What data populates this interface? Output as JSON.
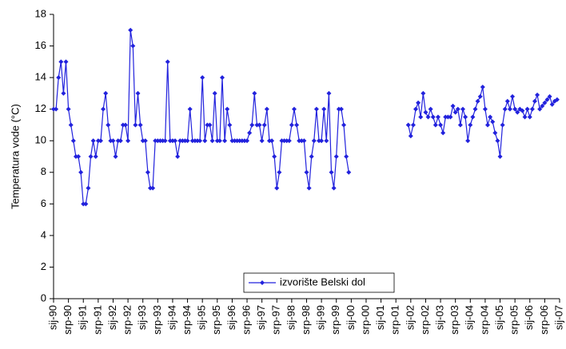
{
  "chart_data": {
    "type": "line",
    "y_label": "Temperatura vode (°C)",
    "x": [
      "1990-01",
      "1990-02",
      "1990-03",
      "1990-04",
      "1990-05",
      "1990-06",
      "1990-07",
      "1990-08",
      "1990-09",
      "1990-10",
      "1990-11",
      "1990-12",
      "1991-01",
      "1991-02",
      "1991-03",
      "1991-04",
      "1991-05",
      "1991-06",
      "1991-07",
      "1991-08",
      "1991-09",
      "1991-10",
      "1991-11",
      "1991-12",
      "1992-01",
      "1992-02",
      "1992-03",
      "1992-04",
      "1992-05",
      "1992-06",
      "1992-07",
      "1992-08",
      "1992-09",
      "1992-10",
      "1992-11",
      "1992-12",
      "1993-01",
      "1993-02",
      "1993-03",
      "1993-04",
      "1993-05",
      "1993-06",
      "1993-07",
      "1993-08",
      "1993-09",
      "1993-10",
      "1993-11",
      "1993-12",
      "1994-01",
      "1994-02",
      "1994-03",
      "1994-04",
      "1994-05",
      "1994-06",
      "1994-07",
      "1994-08",
      "1994-09",
      "1994-10",
      "1994-11",
      "1994-12",
      "1995-01",
      "1995-02",
      "1995-03",
      "1995-04",
      "1995-05",
      "1995-06",
      "1995-07",
      "1995-08",
      "1995-09",
      "1995-10",
      "1995-11",
      "1995-12",
      "1996-01",
      "1996-02",
      "1996-03",
      "1996-04",
      "1996-05",
      "1996-06",
      "1996-07",
      "1996-08",
      "1996-09",
      "1996-10",
      "1996-11",
      "1996-12",
      "1997-01",
      "1997-02",
      "1997-03",
      "1997-04",
      "1997-05",
      "1997-06",
      "1997-07",
      "1997-08",
      "1997-09",
      "1997-10",
      "1997-11",
      "1997-12",
      "1998-01",
      "1998-02",
      "1998-03",
      "1998-04",
      "1998-05",
      "1998-06",
      "1998-07",
      "1998-08",
      "1998-09",
      "1998-10",
      "1998-11",
      "1998-12",
      "1999-01",
      "1999-02",
      "1999-03",
      "1999-04",
      "1999-05",
      "1999-06",
      "1999-07",
      "1999-08",
      "1999-09",
      "1999-10",
      "1999-11",
      "1999-12",
      "2000-06",
      "2001-12",
      "2002-01",
      "2002-02",
      "2002-03",
      "2002-04",
      "2002-05",
      "2002-06",
      "2002-07",
      "2002-08",
      "2002-09",
      "2002-10",
      "2002-11",
      "2002-12",
      "2003-01",
      "2003-02",
      "2003-03",
      "2003-04",
      "2003-05",
      "2003-06",
      "2003-07",
      "2003-08",
      "2003-09",
      "2003-10",
      "2003-11",
      "2003-12",
      "2004-01",
      "2004-02",
      "2004-03",
      "2004-04",
      "2004-05",
      "2004-06",
      "2004-07",
      "2004-08",
      "2004-09",
      "2004-10",
      "2004-11",
      "2004-12",
      "2005-01",
      "2005-02",
      "2005-03",
      "2005-04",
      "2005-05",
      "2005-06",
      "2005-07",
      "2005-08",
      "2005-09",
      "2005-10",
      "2005-11",
      "2005-12",
      "2006-01",
      "2006-02",
      "2006-03",
      "2006-04",
      "2006-05",
      "2006-06",
      "2006-07",
      "2006-08",
      "2006-09",
      "2006-10",
      "2006-11",
      "2006-12"
    ],
    "series": [
      {
        "name": "izvorište Belski dol",
        "color": "#2222dd",
        "values": [
          12,
          12,
          14,
          15,
          13,
          15,
          12,
          11,
          10,
          9,
          9,
          8,
          6,
          6,
          7,
          9,
          10,
          9,
          10,
          10,
          12,
          13,
          11,
          10,
          10,
          9,
          10,
          10,
          11,
          11,
          10,
          17,
          16,
          11,
          13,
          11,
          10,
          10,
          8,
          7,
          7,
          10,
          10,
          10,
          10,
          10,
          15,
          10,
          10,
          10,
          9,
          10,
          10,
          10,
          10,
          12,
          10,
          10,
          10,
          10,
          14,
          10,
          11,
          11,
          10,
          13,
          10,
          10,
          14,
          10,
          12,
          11,
          10,
          10,
          10,
          10,
          10,
          10,
          10,
          10.5,
          11,
          13,
          11,
          11,
          10,
          11,
          12,
          10,
          10,
          9,
          7,
          8,
          10,
          10,
          10,
          10,
          11,
          12,
          11,
          10,
          10,
          10,
          8,
          7,
          9,
          10,
          12,
          10,
          10,
          12,
          10,
          13,
          8,
          7,
          9,
          12,
          12,
          11,
          9,
          8,
          null,
          11,
          10.3,
          11,
          12,
          12.4,
          11.5,
          13,
          11.8,
          11.5,
          12,
          11.5,
          11,
          11.5,
          11,
          10.5,
          11.5,
          11.5,
          11.5,
          12.2,
          11.8,
          12,
          11,
          12,
          11.5,
          10,
          11,
          11.5,
          12,
          12.5,
          12.8,
          13.4,
          12,
          11,
          11.5,
          11.2,
          10.5,
          10,
          9,
          11,
          12,
          12.5,
          12,
          12.8,
          12,
          11.8,
          12,
          11.9,
          11.5,
          12,
          11.5,
          12,
          12.5,
          12.9,
          12,
          12.2,
          12.4,
          12.6,
          12.8,
          12.3,
          12.5,
          12.6
        ]
      }
    ],
    "ylim": [
      0,
      18
    ],
    "yticks": [
      0,
      2,
      4,
      6,
      8,
      10,
      12,
      14,
      16,
      18
    ],
    "xlim": [
      "1990-01",
      "2007-01"
    ],
    "xticks": [
      {
        "value": "1990-01",
        "label": "sij-90"
      },
      {
        "value": "1990-07",
        "label": "srp-90"
      },
      {
        "value": "1991-01",
        "label": "sij-91"
      },
      {
        "value": "1991-07",
        "label": "srp-91"
      },
      {
        "value": "1992-01",
        "label": "sij-92"
      },
      {
        "value": "1992-07",
        "label": "srp-92"
      },
      {
        "value": "1993-01",
        "label": "sij-93"
      },
      {
        "value": "1993-07",
        "label": "srp-93"
      },
      {
        "value": "1994-01",
        "label": "sij-94"
      },
      {
        "value": "1994-07",
        "label": "srp-94"
      },
      {
        "value": "1995-01",
        "label": "sij-95"
      },
      {
        "value": "1995-07",
        "label": "srp-95"
      },
      {
        "value": "1996-01",
        "label": "sij-96"
      },
      {
        "value": "1996-07",
        "label": "srp-96"
      },
      {
        "value": "1997-01",
        "label": "sij-97"
      },
      {
        "value": "1997-07",
        "label": "srp-97"
      },
      {
        "value": "1998-01",
        "label": "sij-98"
      },
      {
        "value": "1998-07",
        "label": "srp-98"
      },
      {
        "value": "1999-01",
        "label": "sij-99"
      },
      {
        "value": "1999-07",
        "label": "srp-99"
      },
      {
        "value": "2000-01",
        "label": "sij-00"
      },
      {
        "value": "2000-07",
        "label": "srp-00"
      },
      {
        "value": "2001-01",
        "label": "sij-01"
      },
      {
        "value": "2001-07",
        "label": "srp-01"
      },
      {
        "value": "2002-01",
        "label": "sij-02"
      },
      {
        "value": "2002-07",
        "label": "srp-02"
      },
      {
        "value": "2003-01",
        "label": "sij-03"
      },
      {
        "value": "2003-07",
        "label": "srp-03"
      },
      {
        "value": "2004-01",
        "label": "sij-04"
      },
      {
        "value": "2004-07",
        "label": "srp-04"
      },
      {
        "value": "2005-01",
        "label": "sij-05"
      },
      {
        "value": "2005-07",
        "label": "srp-05"
      },
      {
        "value": "2006-01",
        "label": "sij-06"
      },
      {
        "value": "2006-07",
        "label": "srp-06"
      },
      {
        "value": "2007-01",
        "label": "sij-07"
      }
    ],
    "grid": false,
    "legend": "bottom-center"
  }
}
